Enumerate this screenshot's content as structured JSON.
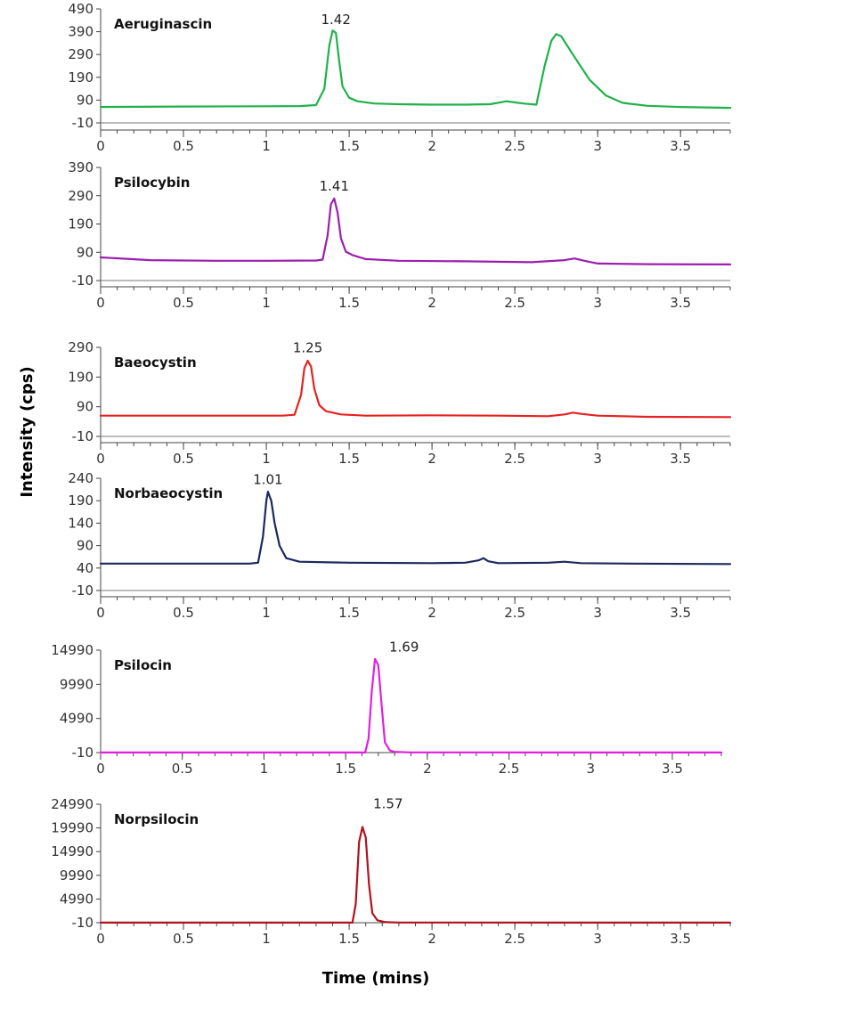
{
  "figure": {
    "ylabel": "Intensity (cps)",
    "xlabel": "Time (mins)"
  },
  "chart_data": [
    {
      "type": "line",
      "title": "Aeruginascin",
      "color": "#1fb24a",
      "xlim": [
        0,
        3.8
      ],
      "ylim": [
        -10,
        490
      ],
      "x_ticks": [
        0,
        0.5,
        1,
        1.5,
        2,
        2.5,
        3,
        3.5
      ],
      "x_tick_labels": [
        "0",
        "0.5",
        "1",
        "1.5",
        "2",
        "2.5",
        "3",
        "3.5"
      ],
      "y_ticks": [
        -10,
        90,
        190,
        290,
        390,
        490
      ],
      "y_tick_labels": [
        "-10",
        "90",
        "190",
        "290",
        "390",
        "490"
      ],
      "peak_label": {
        "text": "1.42",
        "x": 1.42,
        "y": 400
      },
      "series": [
        {
          "x": [
            0,
            0.5,
            1,
            1.2,
            1.3,
            1.35,
            1.38,
            1.4,
            1.42,
            1.44,
            1.46,
            1.5,
            1.55,
            1.65,
            1.8,
            2.0,
            2.2,
            2.35,
            2.45,
            2.55,
            2.63,
            2.68,
            2.72,
            2.75,
            2.78,
            2.85,
            2.95,
            3.05,
            3.15,
            3.3,
            3.5,
            3.8
          ],
          "y": [
            60,
            62,
            63,
            64,
            68,
            140,
            330,
            395,
            385,
            260,
            150,
            100,
            85,
            75,
            72,
            70,
            70,
            72,
            85,
            75,
            70,
            240,
            350,
            380,
            370,
            290,
            180,
            110,
            78,
            65,
            60,
            56
          ]
        }
      ]
    },
    {
      "type": "line",
      "title": "Psilocybin",
      "color": "#9b1fae",
      "xlim": [
        0,
        3.8
      ],
      "ylim": [
        -10,
        390
      ],
      "x_ticks": [
        0,
        0.5,
        1,
        1.5,
        2,
        2.5,
        3,
        3.5
      ],
      "x_tick_labels": [
        "0",
        "0.5",
        "1",
        "1.5",
        "2",
        "2.5",
        "3",
        "3.5"
      ],
      "y_ticks": [
        -10,
        90,
        190,
        290,
        390
      ],
      "y_tick_labels": [
        "-10",
        "90",
        "190",
        "290",
        "390"
      ],
      "peak_label": {
        "text": "1.41",
        "x": 1.41,
        "y": 290
      },
      "series": [
        {
          "x": [
            0,
            0.3,
            0.7,
            1.0,
            1.3,
            1.34,
            1.37,
            1.39,
            1.41,
            1.43,
            1.45,
            1.48,
            1.52,
            1.6,
            1.8,
            2.2,
            2.6,
            2.8,
            2.86,
            2.92,
            3.0,
            3.3,
            3.8
          ],
          "y": [
            72,
            62,
            60,
            60,
            61,
            64,
            150,
            260,
            280,
            230,
            140,
            92,
            80,
            66,
            60,
            58,
            55,
            62,
            68,
            60,
            50,
            48,
            47
          ]
        }
      ]
    },
    {
      "type": "line",
      "title": "Baeocystin",
      "color": "#e62222",
      "xlim": [
        0,
        3.8
      ],
      "ylim": [
        -10,
        290
      ],
      "x_ticks": [
        0,
        0.5,
        1,
        1.5,
        2,
        2.5,
        3,
        3.5
      ],
      "x_tick_labels": [
        "0",
        "0.5",
        "1",
        "1.5",
        "2",
        "2.5",
        "3",
        "3.5"
      ],
      "y_ticks": [
        -10,
        90,
        190,
        290
      ],
      "y_tick_labels": [
        "-10",
        "90",
        "190",
        "290"
      ],
      "peak_label": {
        "text": "1.25",
        "x": 1.25,
        "y": 255
      },
      "series": [
        {
          "x": [
            0,
            0.5,
            0.9,
            1.1,
            1.17,
            1.21,
            1.23,
            1.25,
            1.27,
            1.29,
            1.32,
            1.36,
            1.45,
            1.6,
            2.0,
            2.4,
            2.7,
            2.8,
            2.85,
            2.9,
            3.0,
            3.3,
            3.8
          ],
          "y": [
            60,
            60,
            60,
            60,
            63,
            130,
            220,
            245,
            225,
            150,
            95,
            75,
            64,
            60,
            61,
            60,
            58,
            64,
            70,
            66,
            60,
            56,
            55
          ]
        }
      ]
    },
    {
      "type": "line",
      "title": "Norbaeocystin",
      "color": "#1a2a5e",
      "xlim": [
        0,
        3.8
      ],
      "ylim": [
        -10,
        240
      ],
      "x_ticks": [
        0,
        0.5,
        1,
        1.5,
        2,
        2.5,
        3,
        3.5
      ],
      "x_tick_labels": [
        "0",
        "0.5",
        "1",
        "1.5",
        "2",
        "2.5",
        "3",
        "3.5"
      ],
      "y_ticks": [
        -10,
        40,
        90,
        140,
        190,
        240
      ],
      "y_tick_labels": [
        "-10",
        "40",
        "90",
        "140",
        "190",
        "240"
      ],
      "peak_label": {
        "text": "1.01",
        "x": 1.01,
        "y": 215
      },
      "series": [
        {
          "x": [
            0,
            0.5,
            0.9,
            0.95,
            0.98,
            1.0,
            1.01,
            1.03,
            1.05,
            1.08,
            1.12,
            1.2,
            1.5,
            2.0,
            2.2,
            2.28,
            2.31,
            2.34,
            2.4,
            2.7,
            2.8,
            2.9,
            3.2,
            3.8
          ],
          "y": [
            50,
            50,
            50,
            52,
            110,
            190,
            210,
            190,
            140,
            90,
            62,
            54,
            52,
            51,
            52,
            57,
            62,
            55,
            51,
            52,
            54,
            51,
            50,
            49
          ]
        }
      ]
    },
    {
      "type": "line",
      "title": "Psilocin",
      "color": "#e020e0",
      "xlim": [
        0,
        3.8
      ],
      "ylim": [
        -10,
        14990
      ],
      "x_ticks": [
        0,
        0.5,
        1,
        1.5,
        2,
        2.5,
        3,
        3.5
      ],
      "x_tick_labels": [
        "0",
        "0.5",
        "1",
        "1.5",
        "2",
        "2.5",
        "3",
        "3.5"
      ],
      "y_ticks": [
        -10,
        4990,
        9990,
        14990
      ],
      "y_tick_labels": [
        "-10",
        "4990",
        "9990",
        "14990"
      ],
      "peak_label": {
        "text": "1.69",
        "x": 1.69,
        "y": 14000
      },
      "series": [
        {
          "x": [
            0,
            1.5,
            1.62,
            1.64,
            1.66,
            1.68,
            1.7,
            1.72,
            1.74,
            1.77,
            1.8,
            1.9,
            3.8
          ],
          "y": [
            0,
            0,
            0,
            2000,
            9000,
            13700,
            12800,
            7000,
            1500,
            300,
            100,
            20,
            0
          ]
        }
      ]
    },
    {
      "type": "line",
      "title": "Norpsilocin",
      "color": "#b0121e",
      "xlim": [
        0,
        3.8
      ],
      "ylim": [
        -10,
        24990
      ],
      "x_ticks": [
        0,
        0.5,
        1,
        1.5,
        2,
        2.5,
        3,
        3.5
      ],
      "x_tick_labels": [
        "0",
        "0.5",
        "1",
        "1.5",
        "2",
        "2.5",
        "3",
        "3.5"
      ],
      "y_ticks": [
        -10,
        4990,
        9990,
        14990,
        19990,
        24990
      ],
      "y_tick_labels": [
        "-10",
        "4990",
        "9990",
        "14990",
        "19990",
        "24990"
      ],
      "peak_label": {
        "text": "1.57",
        "x": 1.57,
        "y": 23000
      },
      "series": [
        {
          "x": [
            0,
            1.45,
            1.52,
            1.54,
            1.56,
            1.58,
            1.6,
            1.62,
            1.64,
            1.67,
            1.72,
            1.8,
            3.8
          ],
          "y": [
            0,
            0,
            0,
            4000,
            17000,
            20200,
            18000,
            8000,
            2000,
            500,
            100,
            20,
            0
          ]
        }
      ]
    }
  ]
}
